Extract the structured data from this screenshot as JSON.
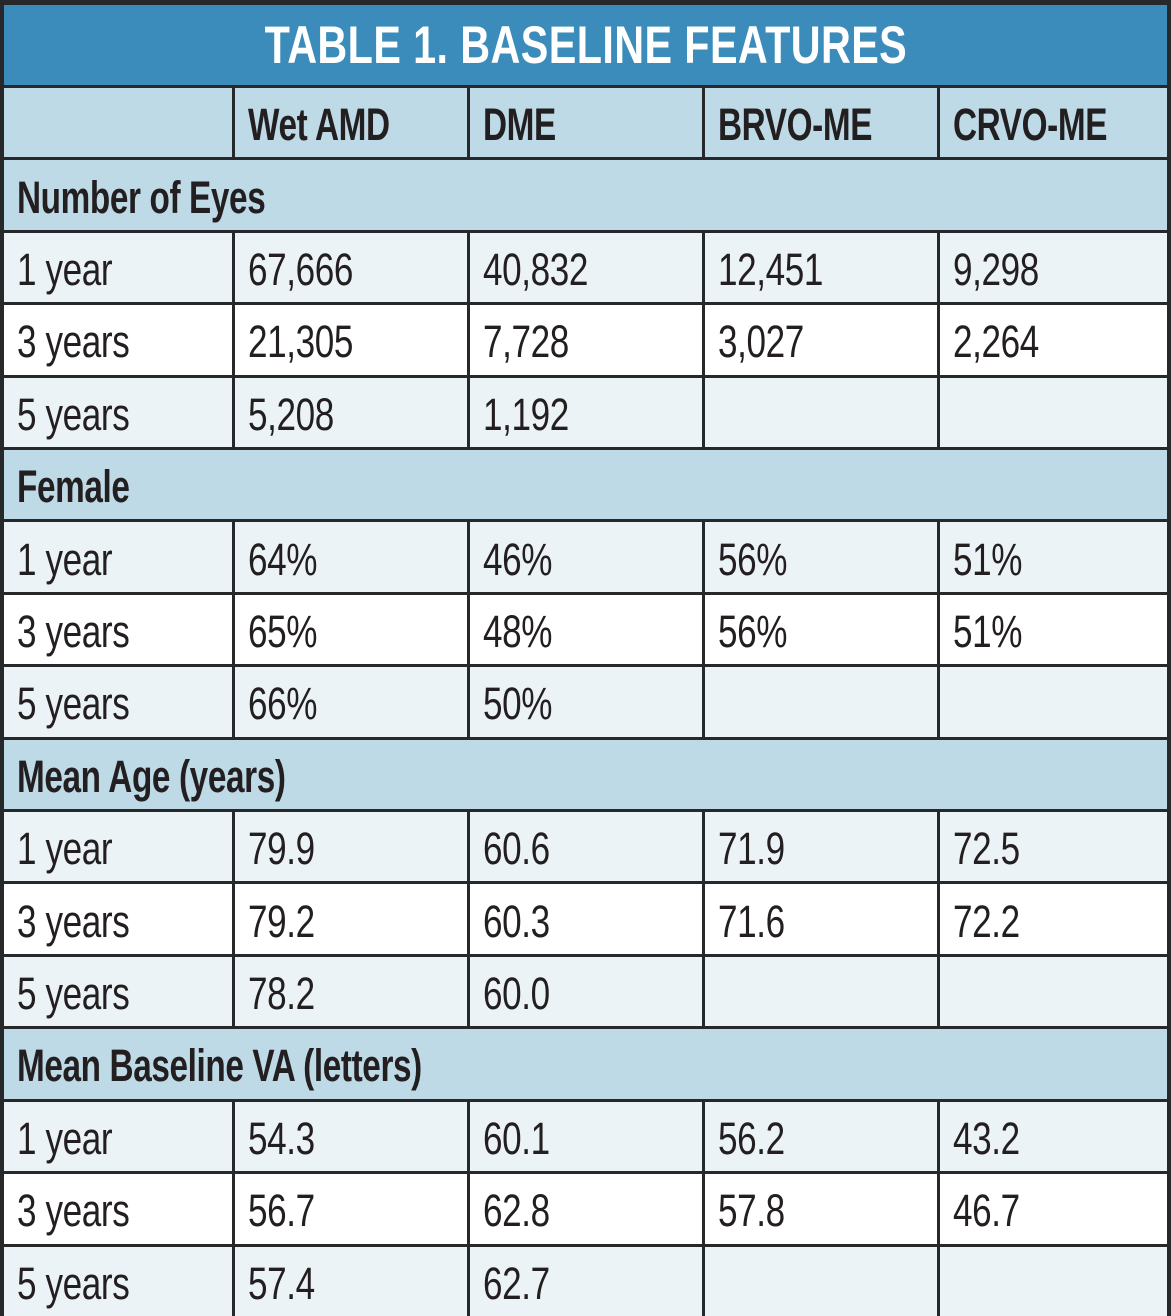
{
  "table": {
    "title": "TABLE 1. BASELINE FEATURES",
    "columns": [
      "",
      "Wet AMD",
      "DME",
      "BRVO-ME",
      "CRVO-ME"
    ],
    "sections": [
      {
        "header": "Number of Eyes",
        "rows": [
          {
            "label": "1 year",
            "values": [
              "67,666",
              "40,832",
              "12,451",
              "9,298"
            ]
          },
          {
            "label": "3 years",
            "values": [
              "21,305",
              "7,728",
              "3,027",
              "2,264"
            ]
          },
          {
            "label": "5 years",
            "values": [
              "5,208",
              "1,192",
              "",
              ""
            ]
          }
        ]
      },
      {
        "header": "Female",
        "rows": [
          {
            "label": "1 year",
            "values": [
              "64%",
              "46%",
              "56%",
              "51%"
            ]
          },
          {
            "label": "3 years",
            "values": [
              "65%",
              "48%",
              "56%",
              "51%"
            ]
          },
          {
            "label": "5 years",
            "values": [
              "66%",
              "50%",
              "",
              ""
            ]
          }
        ]
      },
      {
        "header": "Mean Age (years)",
        "rows": [
          {
            "label": "1 year",
            "values": [
              "79.9",
              "60.6",
              "71.9",
              "72.5"
            ]
          },
          {
            "label": "3 years",
            "values": [
              "79.2",
              "60.3",
              "71.6",
              "72.2"
            ]
          },
          {
            "label": "5 years",
            "values": [
              "78.2",
              "60.0",
              "",
              ""
            ]
          }
        ]
      },
      {
        "header": "Mean Baseline VA (letters)",
        "rows": [
          {
            "label": "1 year",
            "values": [
              "54.3",
              "60.1",
              "56.2",
              "43.2"
            ]
          },
          {
            "label": "3 years",
            "values": [
              "56.7",
              "62.8",
              "57.8",
              "46.7"
            ]
          },
          {
            "label": "5 years",
            "values": [
              "57.4",
              "62.7",
              "",
              ""
            ]
          }
        ]
      }
    ]
  },
  "chart_data": {
    "type": "table",
    "title": "TABLE 1. BASELINE FEATURES",
    "columns": [
      "Wet AMD",
      "DME",
      "BRVO-ME",
      "CRVO-ME"
    ],
    "row_groups": [
      {
        "group": "Number of Eyes",
        "rows": [
          {
            "label": "1 year",
            "values": [
              67666,
              40832,
              12451,
              9298
            ]
          },
          {
            "label": "3 years",
            "values": [
              21305,
              7728,
              3027,
              2264
            ]
          },
          {
            "label": "5 years",
            "values": [
              5208,
              1192,
              null,
              null
            ]
          }
        ]
      },
      {
        "group": "Female",
        "unit": "%",
        "rows": [
          {
            "label": "1 year",
            "values": [
              64,
              46,
              56,
              51
            ]
          },
          {
            "label": "3 years",
            "values": [
              65,
              48,
              56,
              51
            ]
          },
          {
            "label": "5 years",
            "values": [
              66,
              50,
              null,
              null
            ]
          }
        ]
      },
      {
        "group": "Mean Age (years)",
        "rows": [
          {
            "label": "1 year",
            "values": [
              79.9,
              60.6,
              71.9,
              72.5
            ]
          },
          {
            "label": "3 years",
            "values": [
              79.2,
              60.3,
              71.6,
              72.2
            ]
          },
          {
            "label": "5 years",
            "values": [
              78.2,
              60.0,
              null,
              null
            ]
          }
        ]
      },
      {
        "group": "Mean Baseline VA (letters)",
        "rows": [
          {
            "label": "1 year",
            "values": [
              54.3,
              60.1,
              56.2,
              43.2
            ]
          },
          {
            "label": "3 years",
            "values": [
              56.7,
              62.8,
              57.8,
              46.7
            ]
          },
          {
            "label": "5 years",
            "values": [
              57.4,
              62.7,
              null,
              null
            ]
          }
        ]
      }
    ]
  },
  "colors": {
    "title_bg": "#3b8cba",
    "title_text": "#ffffff",
    "header_bg": "#bedae6",
    "row_alt_bg": "#ecf3f7",
    "row_white_bg": "#ffffff",
    "border": "#26282a",
    "text": "#231f20"
  }
}
